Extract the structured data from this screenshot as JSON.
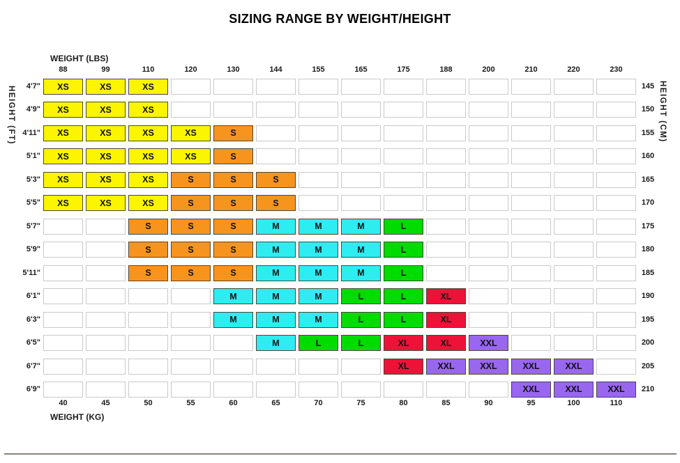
{
  "title": "SIZING RANGE BY WEIGHT/HEIGHT",
  "axes": {
    "top_label": "WEIGHT (LBS)",
    "bottom_label": "WEIGHT (KG)",
    "left_label": "HEIGHT (FT)",
    "right_label": "HEIGHT (CM)"
  },
  "footer_rule_color": "#85827E",
  "chart_data": {
    "type": "heatmap",
    "title": "SIZING RANGE BY WEIGHT/HEIGHT",
    "xlabel_top": "WEIGHT (LBS)",
    "xlabel_bottom": "WEIGHT (KG)",
    "ylabel_left": "HEIGHT (FT)",
    "ylabel_right": "HEIGHT (CM)",
    "columns_lbs": [
      "88",
      "99",
      "110",
      "120",
      "130",
      "144",
      "155",
      "165",
      "175",
      "188",
      "200",
      "210",
      "220",
      "230"
    ],
    "columns_kg": [
      "40",
      "45",
      "50",
      "55",
      "60",
      "65",
      "70",
      "75",
      "80",
      "85",
      "90",
      "95",
      "100",
      "110"
    ],
    "rows_ft": [
      "4'7\"",
      "4'9\"",
      "4'11\"",
      "5'1\"",
      "5'3\"",
      "5'5\"",
      "5'7\"",
      "5'9\"",
      "5'11\"",
      "6'1\"",
      "6'3\"",
      "6'5\"",
      "6'7\"",
      "6'9\""
    ],
    "rows_cm": [
      "145",
      "150",
      "155",
      "160",
      "165",
      "170",
      "175",
      "180",
      "185",
      "190",
      "195",
      "200",
      "205",
      "210"
    ],
    "matrix": [
      [
        "XS",
        "XS",
        "XS",
        "",
        "",
        "",
        "",
        "",
        "",
        "",
        "",
        "",
        "",
        ""
      ],
      [
        "XS",
        "XS",
        "XS",
        "",
        "",
        "",
        "",
        "",
        "",
        "",
        "",
        "",
        "",
        ""
      ],
      [
        "XS",
        "XS",
        "XS",
        "XS",
        "S",
        "",
        "",
        "",
        "",
        "",
        "",
        "",
        "",
        ""
      ],
      [
        "XS",
        "XS",
        "XS",
        "XS",
        "S",
        "",
        "",
        "",
        "",
        "",
        "",
        "",
        "",
        ""
      ],
      [
        "XS",
        "XS",
        "XS",
        "S",
        "S",
        "S",
        "",
        "",
        "",
        "",
        "",
        "",
        "",
        ""
      ],
      [
        "XS",
        "XS",
        "XS",
        "S",
        "S",
        "S",
        "",
        "",
        "",
        "",
        "",
        "",
        "",
        ""
      ],
      [
        "",
        "",
        "S",
        "S",
        "S",
        "M",
        "M",
        "M",
        "L",
        "",
        "",
        "",
        "",
        ""
      ],
      [
        "",
        "",
        "S",
        "S",
        "S",
        "M",
        "M",
        "M",
        "L",
        "",
        "",
        "",
        "",
        ""
      ],
      [
        "",
        "",
        "S",
        "S",
        "S",
        "M",
        "M",
        "M",
        "L",
        "",
        "",
        "",
        "",
        ""
      ],
      [
        "",
        "",
        "",
        "",
        "M",
        "M",
        "M",
        "L",
        "L",
        "XL",
        "",
        "",
        "",
        ""
      ],
      [
        "",
        "",
        "",
        "",
        "M",
        "M",
        "M",
        "L",
        "L",
        "XL",
        "",
        "",
        "",
        ""
      ],
      [
        "",
        "",
        "",
        "",
        "",
        "M",
        "L",
        "L",
        "XL",
        "XL",
        "XXL",
        "",
        "",
        ""
      ],
      [
        "",
        "",
        "",
        "",
        "",
        "",
        "",
        "",
        "XL",
        "XXL",
        "XXL",
        "XXL",
        "XXL",
        ""
      ],
      [
        "",
        "",
        "",
        "",
        "",
        "",
        "",
        "",
        "",
        "",
        "",
        "XXL",
        "XXL",
        "XXL"
      ]
    ],
    "size_colors": {
      "XS": "#FCF500",
      "S": "#F7941E",
      "M": "#2DEDF0",
      "L": "#00DB00",
      "XL": "#EE1239",
      "XXL": "#9966F0"
    },
    "empty_cell": {
      "fill": "#FFFFFF",
      "border": "#C9C9C9"
    },
    "legend_position": "none",
    "grid": "off"
  }
}
